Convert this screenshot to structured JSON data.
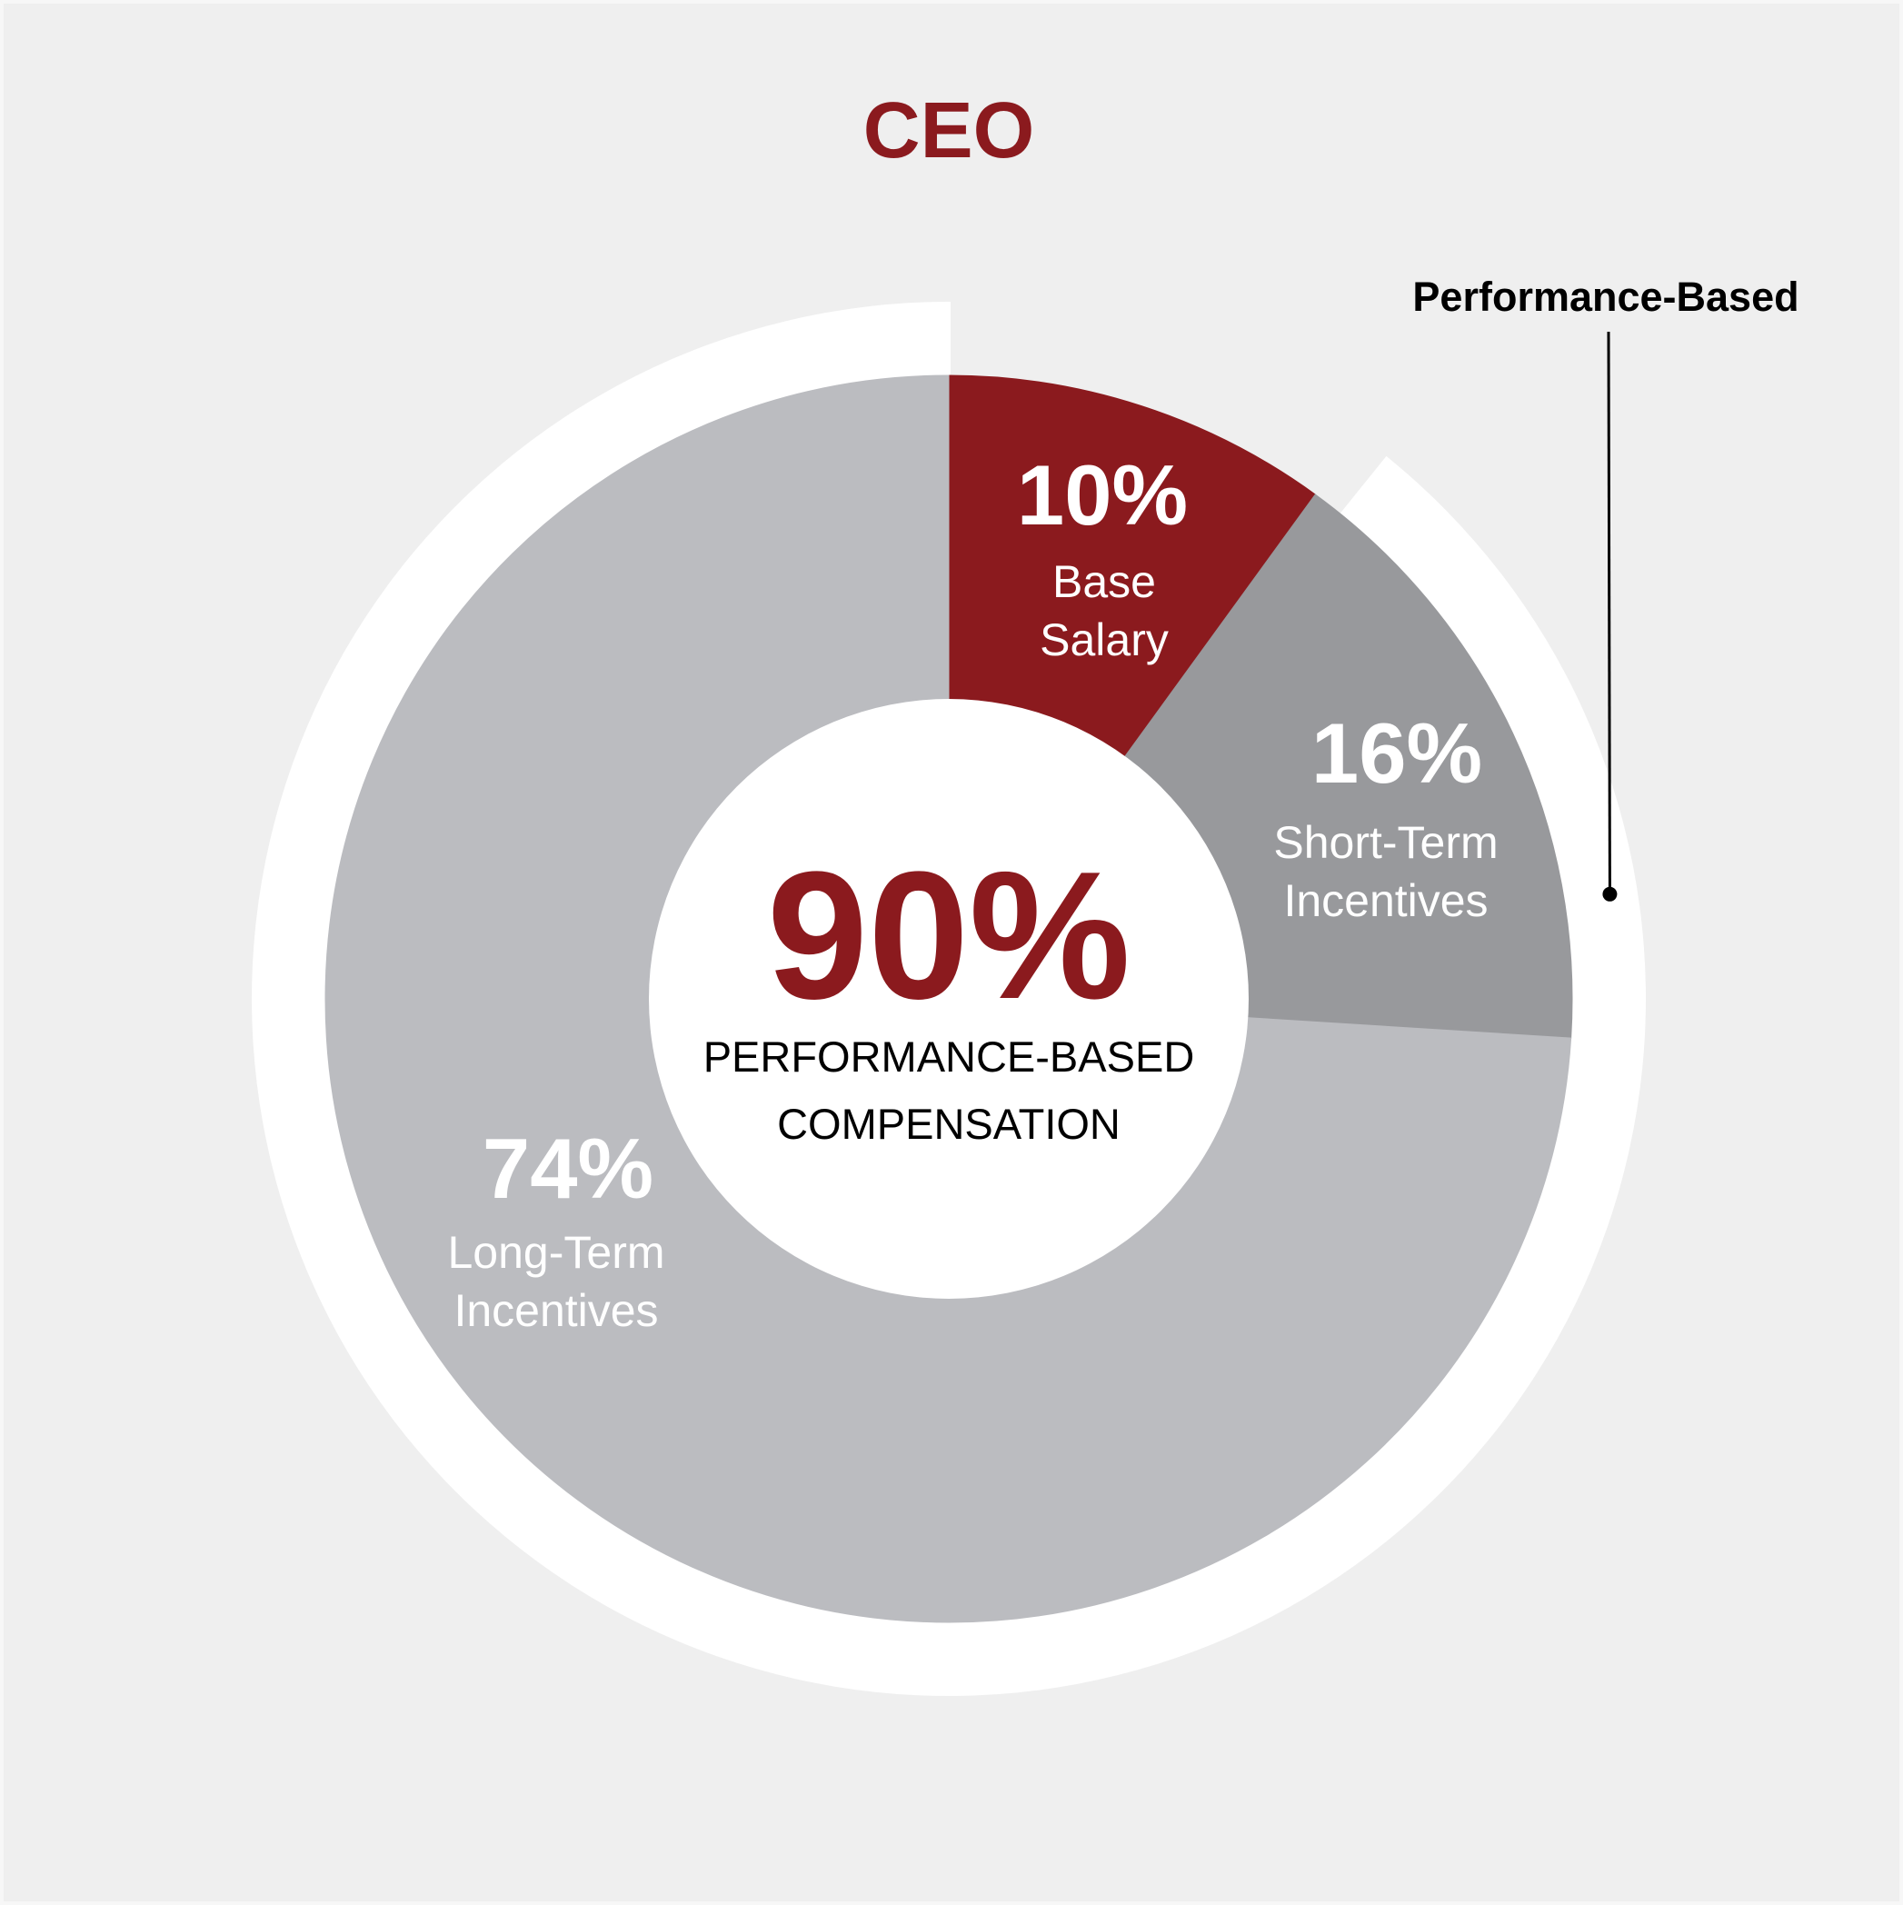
{
  "chart_data": {
    "type": "donut",
    "title": "CEO",
    "categories": [
      "Base Salary",
      "Short-Term Incentives",
      "Long-Term Incentives"
    ],
    "values": [
      10,
      16,
      74
    ],
    "value_labels": [
      "10%",
      "16%",
      "74%"
    ],
    "colors": [
      "#8b1a1e",
      "#98999c",
      "#bbbcc0"
    ],
    "center_label": "90%",
    "center_text": "PERFORMANCE-BASED COMPENSATION",
    "outer_arc": {
      "label": "Performance-Based",
      "value": 90,
      "color": "#ffffff"
    }
  }
}
